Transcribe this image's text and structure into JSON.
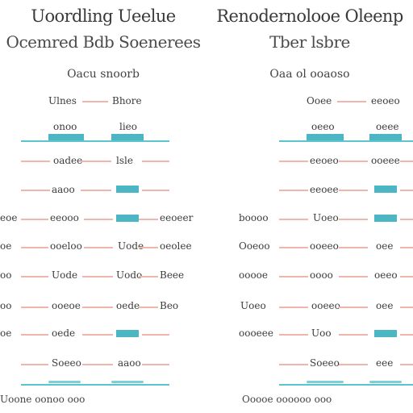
{
  "left_panel": {
    "title": "Uoordling Ueelue",
    "subtitle": "Ocemred Bdb Soenerees",
    "section": "Oacu snoorb",
    "header": {
      "col1": "Ulnes",
      "col2": "Bhore"
    },
    "subheader": {
      "col1": "onoo",
      "col2": "lieo"
    },
    "rows": [
      {
        "left": "",
        "mid": "oadee",
        "right": "lsle"
      },
      {
        "left": "",
        "mid": "aaoo",
        "right": ""
      },
      {
        "left": "eoe",
        "mid": "eeooo",
        "right": "eeoeer"
      },
      {
        "left": "oe",
        "mid": "ooeloo",
        "right": "oeolee"
      },
      {
        "left": "oo",
        "mid": "Uode",
        "right": "Beee"
      },
      {
        "left": "oo",
        "mid": "ooeoe",
        "right": "Uodo"
      },
      {
        "left": "oe",
        "mid": "oede",
        "right": ""
      },
      {
        "left": "",
        "mid": "Soeeo",
        "right": "Beo"
      }
    ],
    "footer": "Uoone oonoo ooo"
  },
  "right_panel": {
    "title": "Renodernolooe Oleenp",
    "subtitle": "Tber lsbre",
    "section": "Oaa ol ooaoso",
    "header": {
      "col1": "Ooee",
      "col2": "eeoeo"
    },
    "subheader": {
      "col1": "oeeo",
      "col2": "oeee"
    },
    "rows": [
      {
        "left": "",
        "mid": "eeoeo",
        "right": "ooeee"
      },
      {
        "left": "",
        "mid": "eeoee",
        "right": ""
      },
      {
        "left": "boooo",
        "mid": "Uoeo",
        "right": ""
      },
      {
        "left": "Ooeoo",
        "mid": "ooeeo",
        "right": "oee"
      },
      {
        "left": "ooooe",
        "mid": "oooo",
        "right": "oeeo"
      },
      {
        "left": "Uoeo",
        "mid": "ooeeo",
        "right": "oee"
      },
      {
        "left": "oooeee",
        "mid": "Uoo",
        "right": ""
      },
      {
        "left": "",
        "mid": "Soeeo",
        "right": "eee"
      }
    ],
    "footer": "Ooooe oooooo ooo"
  }
}
